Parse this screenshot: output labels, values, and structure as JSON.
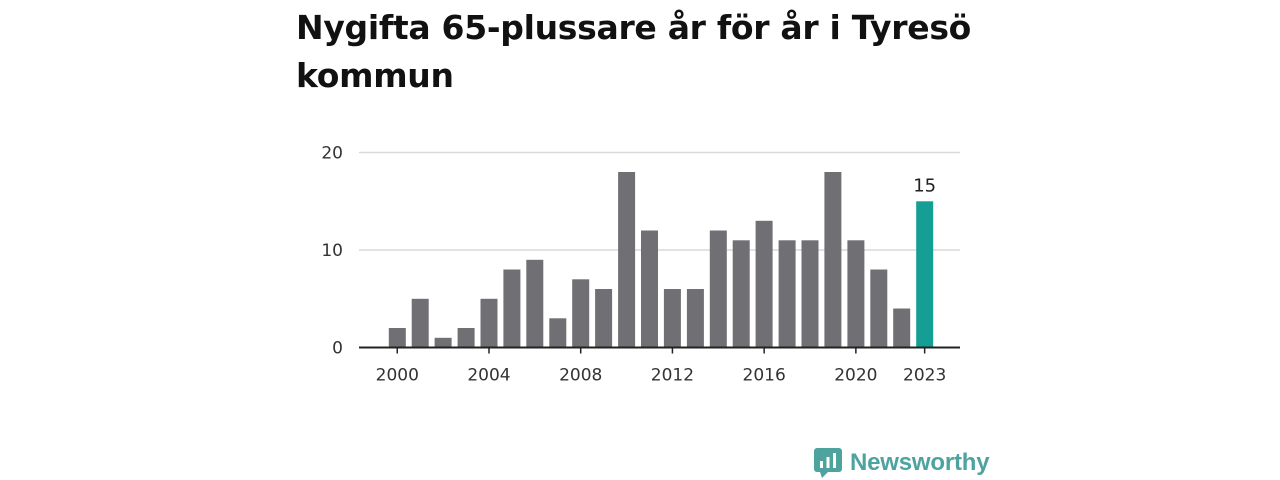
{
  "page": {
    "title": "Nygifta 65-plussare år för år i Tyresö kommun"
  },
  "brand": {
    "name": "Newsworthy",
    "color": "#4fa39f",
    "icon": "bar-chart-icon"
  },
  "colors": {
    "bar": "#706f74",
    "highlight": "#159e94",
    "grid": "#d9d9d9",
    "axis": "#222222"
  },
  "chart_data": {
    "type": "bar",
    "title": "Nygifta 65-plussare år för år i Tyresö kommun",
    "categories": [
      2000,
      2001,
      2002,
      2003,
      2004,
      2005,
      2006,
      2007,
      2008,
      2009,
      2010,
      2011,
      2012,
      2013,
      2014,
      2015,
      2016,
      2017,
      2018,
      2019,
      2020,
      2021,
      2022,
      2023
    ],
    "values": [
      2,
      5,
      1,
      2,
      5,
      8,
      9,
      3,
      7,
      6,
      18,
      12,
      6,
      6,
      12,
      11,
      13,
      11,
      11,
      18,
      11,
      8,
      4,
      15
    ],
    "highlight_index": 23,
    "highlight_label": "15",
    "ylim": [
      0,
      20
    ],
    "yticks": [
      0,
      10,
      20
    ],
    "xtick_labels": [
      "2000",
      "2004",
      "2008",
      "2012",
      "2016",
      "2020",
      "2023"
    ],
    "xlabel": "",
    "ylabel": "",
    "grid": true
  }
}
